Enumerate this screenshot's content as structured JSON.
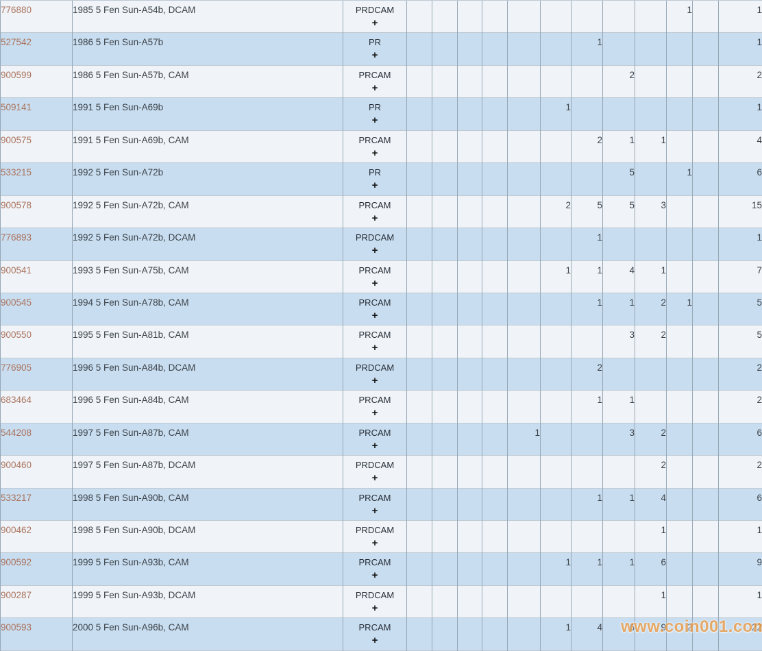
{
  "colors": {
    "row_light": "#f0f4f8",
    "row_blue": "#c8ddef",
    "border_vertical": "#96a7b6",
    "border_horizontal": "#bfc9d2",
    "id_link": "#ab735e",
    "text": "#3c434a",
    "type_text": "#262d36",
    "num_text": "#31373e",
    "watermark": "#ee9c44"
  },
  "watermark": {
    "text": "www.coin001.com"
  },
  "table": {
    "expand_label": "+",
    "rows": [
      {
        "id": "776880",
        "desc": "1985 5 Fen Sun-A54b, DCAM",
        "type": "PRDCAM",
        "grades": [
          "",
          "",
          "",
          "",
          "",
          "",
          "",
          "",
          "",
          "1",
          ""
        ],
        "total": "1"
      },
      {
        "id": "527542",
        "desc": "1986 5 Fen Sun-A57b",
        "type": "PR",
        "grades": [
          "",
          "",
          "",
          "",
          "",
          "",
          "1",
          "",
          "",
          "",
          ""
        ],
        "total": "1"
      },
      {
        "id": "900599",
        "desc": "1986 5 Fen Sun-A57b, CAM",
        "type": "PRCAM",
        "grades": [
          "",
          "",
          "",
          "",
          "",
          "",
          "",
          "2",
          "",
          "",
          ""
        ],
        "total": "2"
      },
      {
        "id": "509141",
        "desc": "1991 5 Fen Sun-A69b",
        "type": "PR",
        "grades": [
          "",
          "",
          "",
          "",
          "",
          "1",
          "",
          "",
          "",
          "",
          ""
        ],
        "total": "1"
      },
      {
        "id": "900575",
        "desc": "1991 5 Fen Sun-A69b, CAM",
        "type": "PRCAM",
        "grades": [
          "",
          "",
          "",
          "",
          "",
          "",
          "2",
          "1",
          "1",
          "",
          ""
        ],
        "total": "4"
      },
      {
        "id": "533215",
        "desc": "1992 5 Fen Sun-A72b",
        "type": "PR",
        "grades": [
          "",
          "",
          "",
          "",
          "",
          "",
          "",
          "5",
          "",
          "1",
          ""
        ],
        "total": "6"
      },
      {
        "id": "900578",
        "desc": "1992 5 Fen Sun-A72b, CAM",
        "type": "PRCAM",
        "grades": [
          "",
          "",
          "",
          "",
          "",
          "2",
          "5",
          "5",
          "3",
          "",
          ""
        ],
        "total": "15"
      },
      {
        "id": "776893",
        "desc": "1992 5 Fen Sun-A72b, DCAM",
        "type": "PRDCAM",
        "grades": [
          "",
          "",
          "",
          "",
          "",
          "",
          "1",
          "",
          "",
          "",
          ""
        ],
        "total": "1"
      },
      {
        "id": "900541",
        "desc": "1993 5 Fen Sun-A75b, CAM",
        "type": "PRCAM",
        "grades": [
          "",
          "",
          "",
          "",
          "",
          "1",
          "1",
          "4",
          "1",
          "",
          ""
        ],
        "total": "7"
      },
      {
        "id": "900545",
        "desc": "1994 5 Fen Sun-A78b, CAM",
        "type": "PRCAM",
        "grades": [
          "",
          "",
          "",
          "",
          "",
          "",
          "1",
          "1",
          "2",
          "1",
          ""
        ],
        "total": "5"
      },
      {
        "id": "900550",
        "desc": "1995 5 Fen Sun-A81b, CAM",
        "type": "PRCAM",
        "grades": [
          "",
          "",
          "",
          "",
          "",
          "",
          "",
          "3",
          "2",
          "",
          ""
        ],
        "total": "5"
      },
      {
        "id": "776905",
        "desc": "1996 5 Fen Sun-A84b, DCAM",
        "type": "PRDCAM",
        "grades": [
          "",
          "",
          "",
          "",
          "",
          "",
          "2",
          "",
          "",
          "",
          ""
        ],
        "total": "2"
      },
      {
        "id": "683464",
        "desc": "1996 5 Fen Sun-A84b, CAM",
        "type": "PRCAM",
        "grades": [
          "",
          "",
          "",
          "",
          "",
          "",
          "1",
          "1",
          "",
          "",
          ""
        ],
        "total": "2"
      },
      {
        "id": "544208",
        "desc": "1997 5 Fen Sun-A87b, CAM",
        "type": "PRCAM",
        "grades": [
          "",
          "",
          "",
          "",
          "1",
          "",
          "",
          "3",
          "2",
          "",
          ""
        ],
        "total": "6"
      },
      {
        "id": "900460",
        "desc": "1997 5 Fen Sun-A87b, DCAM",
        "type": "PRDCAM",
        "grades": [
          "",
          "",
          "",
          "",
          "",
          "",
          "",
          "",
          "2",
          "",
          ""
        ],
        "total": "2"
      },
      {
        "id": "533217",
        "desc": "1998 5 Fen Sun-A90b, CAM",
        "type": "PRCAM",
        "grades": [
          "",
          "",
          "",
          "",
          "",
          "",
          "1",
          "1",
          "4",
          "",
          ""
        ],
        "total": "6"
      },
      {
        "id": "900462",
        "desc": "1998 5 Fen Sun-A90b, DCAM",
        "type": "PRDCAM",
        "grades": [
          "",
          "",
          "",
          "",
          "",
          "",
          "",
          "",
          "1",
          "",
          ""
        ],
        "total": "1"
      },
      {
        "id": "900592",
        "desc": "1999 5 Fen Sun-A93b, CAM",
        "type": "PRCAM",
        "grades": [
          "",
          "",
          "",
          "",
          "",
          "1",
          "1",
          "1",
          "6",
          "",
          ""
        ],
        "total": "9"
      },
      {
        "id": "900287",
        "desc": "1999 5 Fen Sun-A93b, DCAM",
        "type": "PRDCAM",
        "grades": [
          "",
          "",
          "",
          "",
          "",
          "",
          "",
          "",
          "1",
          "",
          ""
        ],
        "total": "1"
      },
      {
        "id": "900593",
        "desc": "2000 5 Fen Sun-A96b, CAM",
        "type": "PRCAM",
        "grades": [
          "",
          "",
          "",
          "",
          "",
          "1",
          "4",
          "6",
          "9",
          "2",
          ""
        ],
        "total": "22"
      }
    ]
  }
}
